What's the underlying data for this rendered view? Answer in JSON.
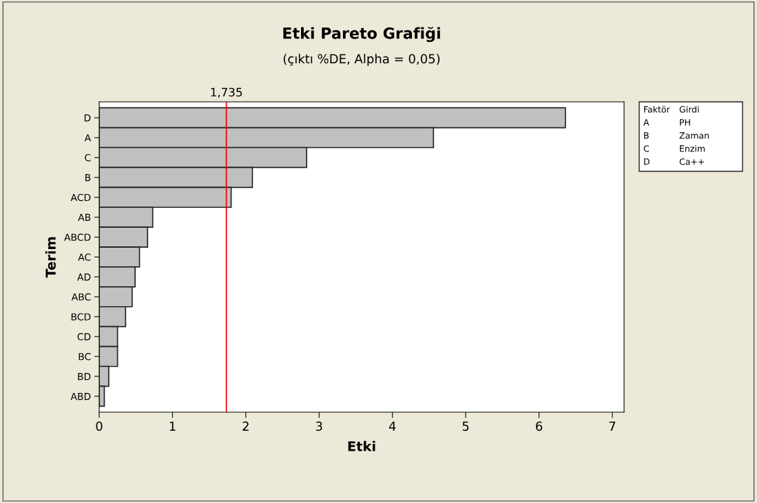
{
  "chart_data": {
    "type": "bar",
    "orientation": "horizontal",
    "title": "Etki Pareto Grafiği",
    "subtitle": "(çıktı %DE, Alpha = 0,05)",
    "xlabel": "Etki",
    "ylabel": "Terim",
    "categories": [
      "D",
      "A",
      "C",
      "B",
      "ACD",
      "AB",
      "ABCD",
      "AC",
      "AD",
      "ABC",
      "BCD",
      "CD",
      "BC",
      "BD",
      "ABD"
    ],
    "values": [
      6.36,
      4.56,
      2.83,
      2.09,
      1.8,
      0.73,
      0.66,
      0.55,
      0.49,
      0.45,
      0.36,
      0.25,
      0.25,
      0.13,
      0.07
    ],
    "color": "#c0c0c0",
    "xlim": [
      0,
      7.16
    ],
    "xticks": [
      0,
      1,
      2,
      3,
      4,
      5,
      6,
      7
    ],
    "ref_lines": [
      {
        "axis": "x",
        "value": 1.735,
        "label": "1,735",
        "color": "#ff0000"
      }
    ],
    "grid": false,
    "annotations": [
      "Faktör",
      "Girdi",
      "A",
      "PH",
      "B",
      "Zaman",
      "C",
      "Enzim",
      "D",
      "Ca++"
    ]
  }
}
